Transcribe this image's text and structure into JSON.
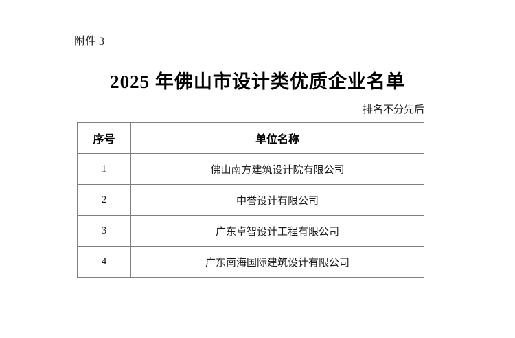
{
  "page": {
    "attachment": "附件 3",
    "title": "2025 年佛山市设计类优质企业名单",
    "note": "排名不分先后"
  },
  "table": {
    "headers": {
      "no": "序号",
      "name": "单位名称"
    },
    "rows": [
      {
        "no": "1",
        "name": "佛山南方建筑设计院有限公司"
      },
      {
        "no": "2",
        "name": "中誉设计有限公司"
      },
      {
        "no": "3",
        "name": "广东卓智设计工程有限公司"
      },
      {
        "no": "4",
        "name": "广东南海国际建筑设计有限公司"
      }
    ]
  }
}
